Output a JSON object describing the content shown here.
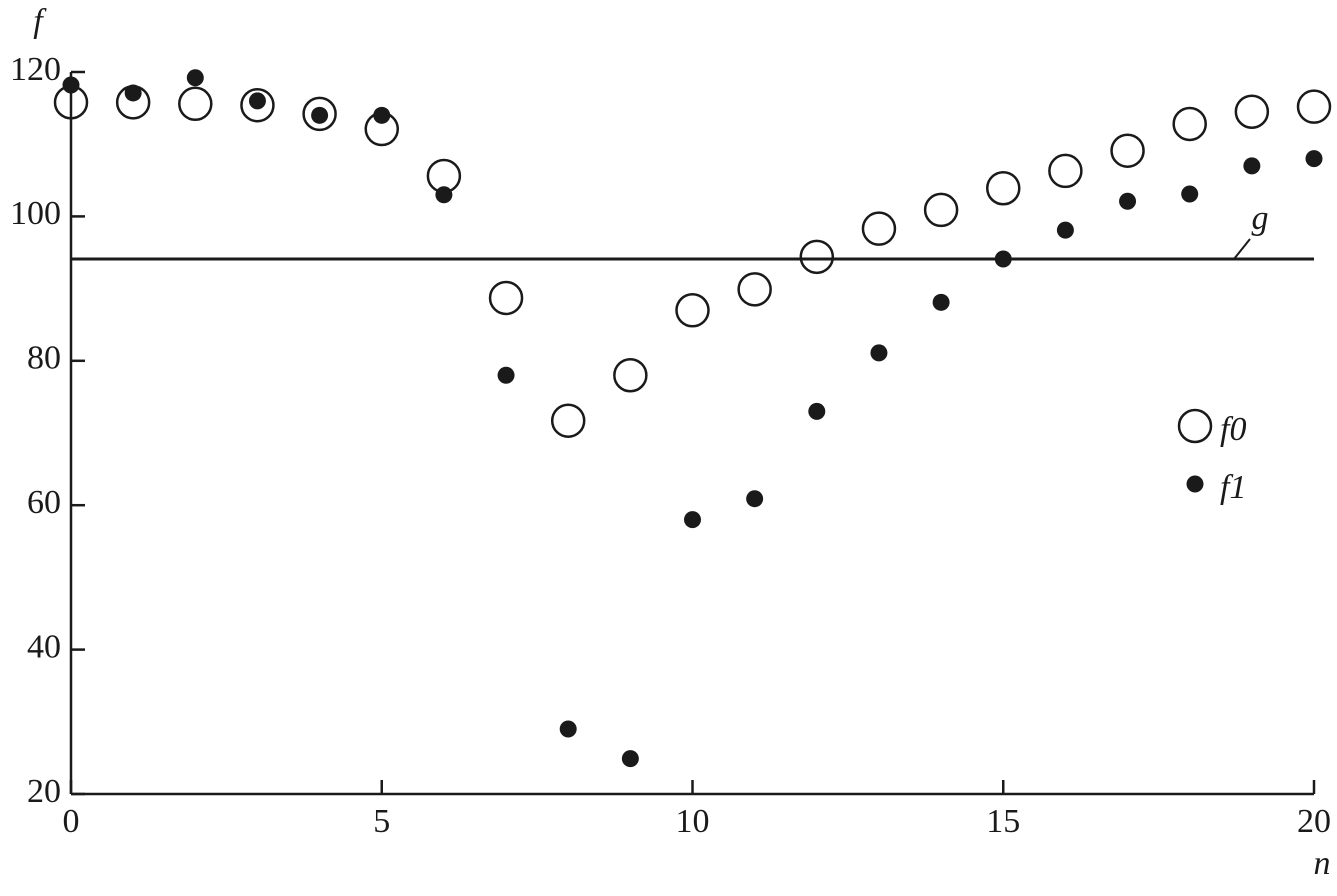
{
  "chart_data": {
    "type": "scatter",
    "x_label": "n",
    "y_label": "f",
    "x": [
      0,
      1,
      2,
      3,
      4,
      5,
      6,
      7,
      8,
      9,
      10,
      11,
      12,
      13,
      14,
      15,
      16,
      17,
      18,
      19,
      20
    ],
    "series": [
      {
        "name": "f0",
        "color": "#1a1a1a",
        "marker": "open",
        "values": [
          115.8,
          115.8,
          115.6,
          115.4,
          114.2,
          112.1,
          105.6,
          88.7,
          71.7,
          78.0,
          87.0,
          89.9,
          94.4,
          98.3,
          100.9,
          103.9,
          106.3,
          109.1,
          112.8,
          114.5,
          115.2
        ]
      },
      {
        "name": "f1",
        "color": "#1a1a1a",
        "marker": "filled",
        "values": [
          118.2,
          117.1,
          119.2,
          116.0,
          114.0,
          114.0,
          103.0,
          78.0,
          29.0,
          24.9,
          58.0,
          60.9,
          73.0,
          81.1,
          88.1,
          94.1,
          98.1,
          102.1,
          103.1,
          107.0,
          108.0
        ]
      }
    ],
    "reference_line": {
      "label": "g",
      "value": 94.1
    },
    "xlim": [
      0,
      20
    ],
    "xticks": [
      0,
      5,
      10,
      15,
      20
    ],
    "ylim": [
      20,
      120
    ],
    "yticks": [
      20,
      40,
      60,
      80,
      100,
      120
    ],
    "legend": "right"
  }
}
